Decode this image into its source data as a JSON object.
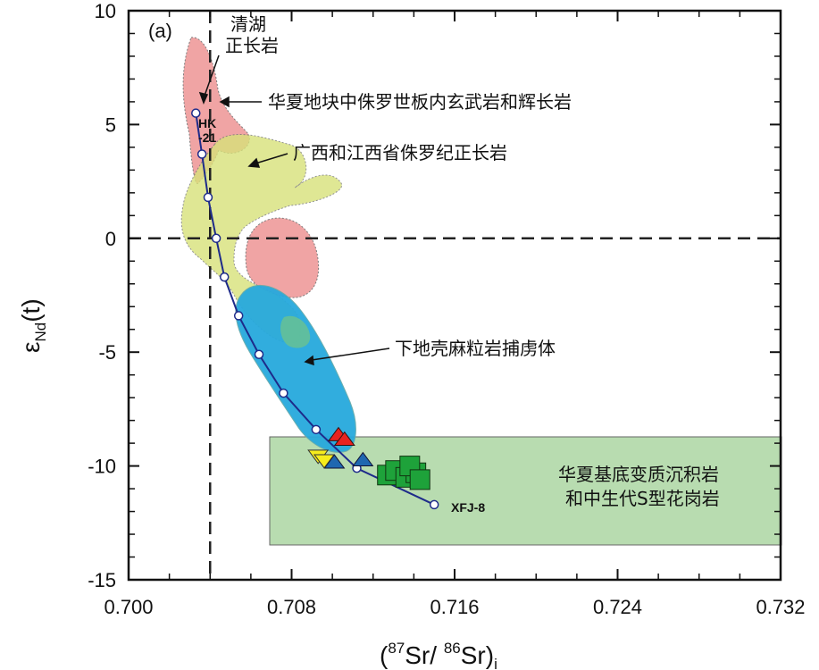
{
  "chart_data": {
    "type": "scatter",
    "panel_label": "(a)",
    "xlabel": {
      "open": "(",
      "sup1": "87",
      "mid": "Sr/ ",
      "sup2": "86",
      "end": "Sr)",
      "sub": "i"
    },
    "ylabel": {
      "main": "ε",
      "sub": "Nd",
      "end": "(t)"
    },
    "xlim": [
      0.7,
      0.732
    ],
    "ylim": [
      -15,
      10
    ],
    "x_ticks": [
      "0.700",
      "0.708",
      "0.716",
      "0.724",
      "0.732"
    ],
    "y_ticks": [
      "10",
      "5",
      "0",
      "-5",
      "-10",
      "-15"
    ],
    "reference_lines": {
      "x": 0.704,
      "y": 0
    },
    "regions": [
      {
        "name": "华夏地块中侏罗世板内玄武岩和辉长岩",
        "color": "#f0a0a0"
      },
      {
        "name": "广西和江西省侏罗纪正长岩",
        "color": "#d8e27a"
      },
      {
        "name": "下地壳麻粒岩捕虏体",
        "color": "#27a9dd"
      },
      {
        "name": "华夏基底变质沉积岩和中生代S型花岗岩",
        "color": "#b8dcb0"
      }
    ],
    "labels": {
      "qinghu": "清湖",
      "syenite": "正长岩",
      "basalt": "华夏地块中侏罗世板内玄武岩和辉长岩",
      "guangxi": "广西和江西省侏罗纪正长岩",
      "granulite": "下地壳麻粒岩捕虏体",
      "basement_line1": "华夏基底变质沉积岩",
      "basement_line2": "和中生代S型花岗岩",
      "hk_line1": "HK",
      "hk_line2": "-21",
      "xfj": "XFJ-8"
    },
    "mixing_curve": {
      "x": [
        0.7033,
        0.7036,
        0.7039,
        0.7043,
        0.7047,
        0.7054,
        0.7064,
        0.7076,
        0.7092,
        0.7112,
        0.715
      ],
      "y": [
        5.5,
        3.7,
        1.8,
        0.0,
        -1.7,
        -3.4,
        -5.1,
        -6.8,
        -8.4,
        -10.1,
        -11.7
      ],
      "color": "#1e2b8a"
    },
    "samples": {
      "red_triangles": {
        "x": [
          0.7103,
          0.7106
        ],
        "y": [
          -8.7,
          -8.9
        ],
        "color": "#e8231f"
      },
      "blue_triangles": {
        "x": [
          0.7101,
          0.7115
        ],
        "y": [
          -9.9,
          -9.8
        ],
        "color": "#1f67b0"
      },
      "yellow_triangles": {
        "x": [
          0.7093,
          0.7096
        ],
        "y": [
          -9.5,
          -9.7
        ],
        "color": "#f6ec1c"
      },
      "green_squares": {
        "x": [
          0.7127,
          0.7131,
          0.7136,
          0.7141,
          0.7138,
          0.7143
        ],
        "y": [
          -10.4,
          -10.2,
          -10.5,
          -10.3,
          -10.0,
          -10.6
        ],
        "color": "#1ea23a"
      }
    }
  }
}
